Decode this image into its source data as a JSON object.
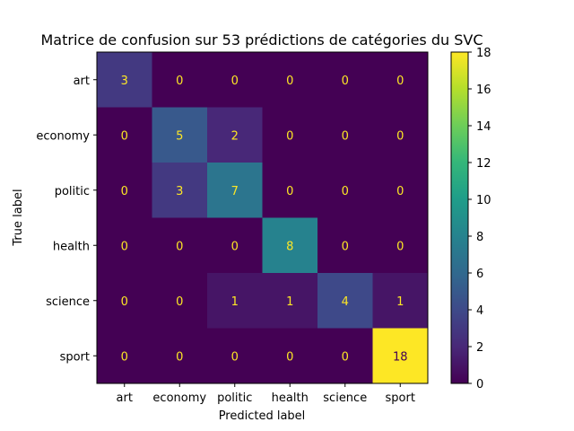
{
  "chart_data": {
    "type": "heatmap",
    "title": "Matrice de confusion sur 53 prédictions de catégories du SVC",
    "xlabel": "Predicted label",
    "ylabel": "True label",
    "x_categories": [
      "art",
      "economy",
      "politic",
      "health",
      "science",
      "sport"
    ],
    "y_categories": [
      "art",
      "economy",
      "politic",
      "health",
      "science",
      "sport"
    ],
    "matrix": [
      [
        3,
        0,
        0,
        0,
        0,
        0
      ],
      [
        0,
        5,
        2,
        0,
        0,
        0
      ],
      [
        0,
        3,
        7,
        0,
        0,
        0
      ],
      [
        0,
        0,
        0,
        8,
        0,
        0
      ],
      [
        0,
        0,
        1,
        1,
        4,
        1
      ],
      [
        0,
        0,
        0,
        0,
        0,
        18
      ]
    ],
    "colorbar": {
      "colormap": "viridis",
      "range": [
        0,
        18
      ],
      "ticks": [
        0,
        2,
        4,
        6,
        8,
        10,
        12,
        14,
        16,
        18
      ]
    },
    "text_colors": {
      "low": "#fde725",
      "high": "#440154"
    },
    "grid": false
  }
}
